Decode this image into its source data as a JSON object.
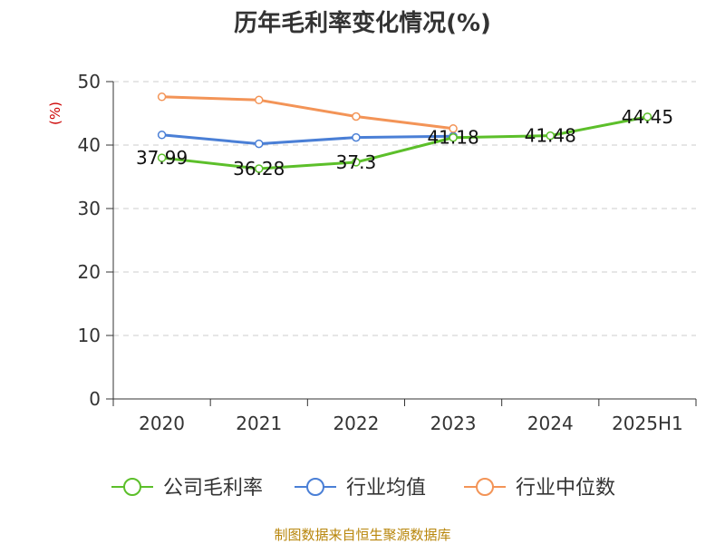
{
  "chart_data": {
    "type": "line",
    "title": "历年毛利率变化情况(%)",
    "ylabel": "(%)",
    "xlabel": "",
    "categories": [
      "2020",
      "2021",
      "2022",
      "2023",
      "2024",
      "2025H1"
    ],
    "ylim": [
      0,
      50
    ],
    "yticks": [
      0,
      10,
      20,
      30,
      40,
      50
    ],
    "grid": true,
    "legend_position": "bottom",
    "series": [
      {
        "name": "公司毛利率",
        "color": "#5cbf2a",
        "values": [
          37.99,
          36.28,
          37.3,
          41.18,
          41.48,
          44.45
        ],
        "labels": [
          "37.99",
          "36.28",
          "37.3",
          "41.18",
          "41.48",
          "44.45"
        ]
      },
      {
        "name": "行业均值",
        "color": "#4a7fd6",
        "values": [
          41.6,
          40.2,
          41.2,
          41.4,
          null,
          null
        ]
      },
      {
        "name": "行业中位数",
        "color": "#f39457",
        "values": [
          47.6,
          47.1,
          44.5,
          42.6,
          null,
          null
        ]
      }
    ]
  },
  "source": "制图数据来自恒生聚源数据库"
}
